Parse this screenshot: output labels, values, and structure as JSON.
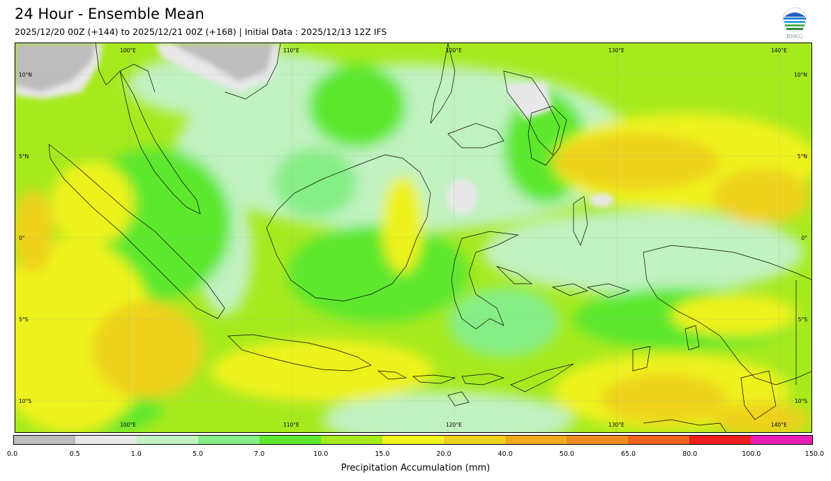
{
  "header": {
    "title": "24 Hour - Ensemble Mean",
    "subtitle": "2025/12/20 00Z (+144) to 2025/12/21 00Z (+168) | Initial Data : 2025/12/13 12Z IFS",
    "logo_text": "BMKG"
  },
  "map": {
    "lon_ticks_top": [
      "100°E",
      "110°E",
      "120°E",
      "130°E",
      "140°E"
    ],
    "lon_ticks_bottom": [
      "100°E",
      "110°E",
      "120°E",
      "130°E",
      "140°E"
    ],
    "lat_ticks_left": [
      "10°N",
      "5°N",
      "0°",
      "5°S",
      "10°S"
    ],
    "lat_ticks_right": [
      "10°N",
      "5°N",
      "0°",
      "5°S",
      "10°S"
    ]
  },
  "colorbar": {
    "title": "Precipitation Accumulation (mm)",
    "boundaries": [
      "0.0",
      "0.5",
      "1.0",
      "5.0",
      "7.0",
      "10.0",
      "15.0",
      "20.0",
      "40.0",
      "50.0",
      "65.0",
      "80.0",
      "100.0",
      "150.0"
    ],
    "colors": [
      "#bdbdbd",
      "#e8e8e8",
      "#c1f2c1",
      "#86ee86",
      "#5de82e",
      "#a6ea1e",
      "#eef21e",
      "#eed21e",
      "#eeaa1e",
      "#ee8c1e",
      "#ee641e",
      "#ee1e1e",
      "#e81eb4"
    ]
  }
}
